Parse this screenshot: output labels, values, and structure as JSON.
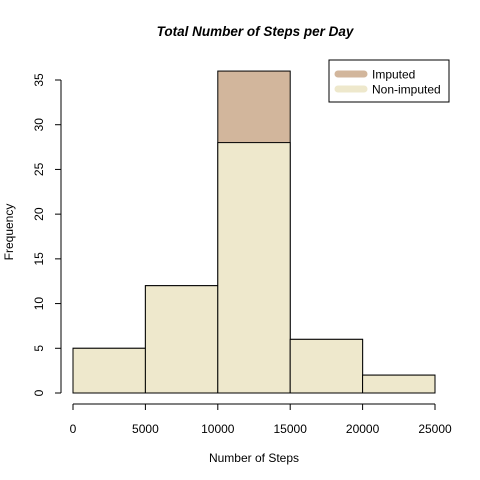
{
  "chart_data": {
    "type": "bar",
    "title": "Total Number of Steps per Day",
    "xlabel": "Number of Steps",
    "ylabel": "Frequency",
    "bins": [
      [
        0,
        5000
      ],
      [
        5000,
        10000
      ],
      [
        10000,
        15000
      ],
      [
        15000,
        20000
      ],
      [
        20000,
        25000
      ]
    ],
    "xlim": [
      0,
      25000
    ],
    "ylim": [
      0,
      35
    ],
    "x_ticks": [
      0,
      5000,
      10000,
      15000,
      20000,
      25000
    ],
    "y_ticks": [
      0,
      5,
      10,
      15,
      20,
      25,
      30,
      35
    ],
    "grid": false,
    "legend_position": "top-right",
    "series": [
      {
        "name": "Imputed",
        "color": "#d2b69c",
        "values": [
          5,
          12,
          36,
          6,
          2
        ]
      },
      {
        "name": "Non-imputed",
        "color": "#eee8cc",
        "values": [
          5,
          12,
          28,
          6,
          2
        ]
      }
    ]
  }
}
